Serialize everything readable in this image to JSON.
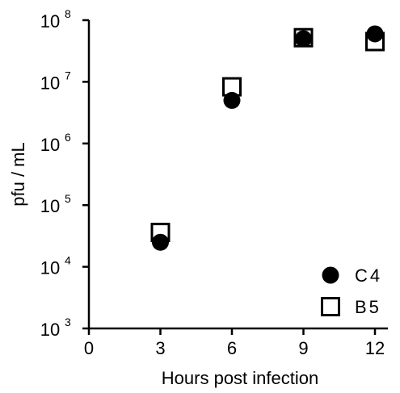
{
  "chart_data": {
    "type": "scatter",
    "xlabel": "Hours post infection",
    "ylabel": "pfu / mL",
    "x_ticks": [
      0,
      3,
      6,
      9,
      12
    ],
    "y_ticks": [
      {
        "value": 1000,
        "base": "10",
        "exp": "3"
      },
      {
        "value": 10000,
        "base": "10",
        "exp": "4"
      },
      {
        "value": 100000,
        "base": "10",
        "exp": "5"
      },
      {
        "value": 1000000,
        "base": "10",
        "exp": "6"
      },
      {
        "value": 10000000,
        "base": "10",
        "exp": "7"
      },
      {
        "value": 100000000,
        "base": "10",
        "exp": "8"
      }
    ],
    "xlim": [
      0,
      13
    ],
    "ylim": [
      1000,
      100000000
    ],
    "y_scale": "log",
    "grid": false,
    "legend_position": "bottom-right",
    "series": [
      {
        "name": "C4",
        "marker": "filled-circle",
        "color": "#000000",
        "x": [
          3,
          6,
          9,
          12
        ],
        "y": [
          25000,
          5000000,
          50000000,
          60000000
        ]
      },
      {
        "name": "B5",
        "marker": "open-square",
        "color": "#000000",
        "x": [
          3,
          6,
          9,
          12
        ],
        "y": [
          36000,
          8300000,
          52000000,
          45000000
        ]
      }
    ]
  }
}
